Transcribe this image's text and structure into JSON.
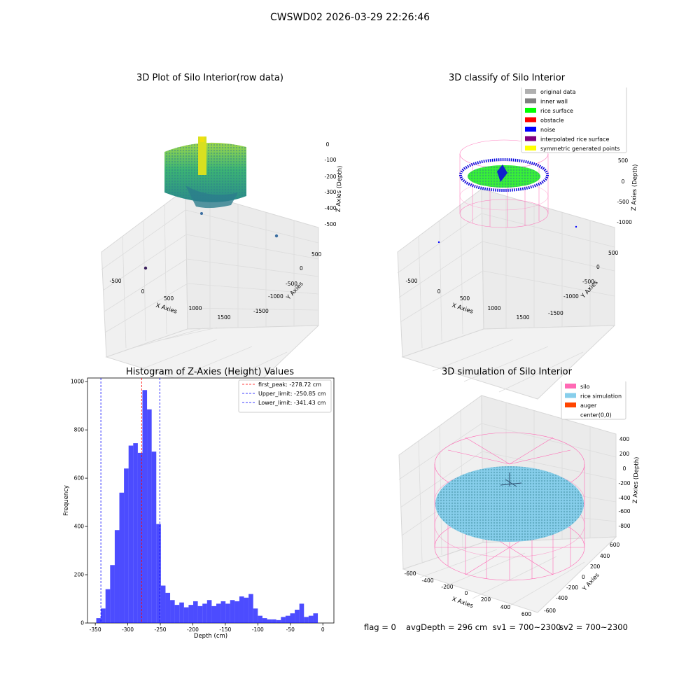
{
  "suptitle": "CWSWD02 2026-03-29 22:26:46",
  "panels": {
    "raw": {
      "title": "3D Plot of Silo Interior(row data)",
      "xlabel": "X Axies",
      "ylabel": "Y Axies",
      "zlabel": "Z Axies (Depth)",
      "xticks": [
        "-500",
        "0",
        "500",
        "1000",
        "1500"
      ],
      "yticks": [
        "500",
        "0",
        "-500",
        "-1000",
        "-1500"
      ],
      "zticks": [
        "0",
        "-100",
        "-200",
        "-300",
        "-400",
        "-500"
      ]
    },
    "classify": {
      "title": "3D classify of Silo Interior",
      "xlabel": "X Axies",
      "ylabel": "Y Axies",
      "zlabel": "Z Axies (Depth)",
      "xticks": [
        "-500",
        "0",
        "500",
        "1000",
        "1500"
      ],
      "yticks": [
        "500",
        "0",
        "-500",
        "-1000",
        "-1500"
      ],
      "zticks": [
        "500",
        "0",
        "-500",
        "-1000"
      ],
      "legend": [
        {
          "label": "original data",
          "color": "#b0b0b0"
        },
        {
          "label": "inner wall",
          "color": "#808080"
        },
        {
          "label": "rice surface",
          "color": "#00ff00"
        },
        {
          "label": "obstacle",
          "color": "#ff0000"
        },
        {
          "label": "noise",
          "color": "#0000ff"
        },
        {
          "label": "interpolated rice surface",
          "color": "#800080"
        },
        {
          "label": "symmetric generated points",
          "color": "#ffff00"
        }
      ]
    },
    "simulation": {
      "title": "3D simulation of Silo Interior",
      "xlabel": "X Axies",
      "ylabel": "Y Axies",
      "zlabel": "Z Axies (Depth)",
      "xticks": [
        "-600",
        "-400",
        "-200",
        "0",
        "200",
        "400",
        "600"
      ],
      "yticks": [
        "600",
        "400",
        "200",
        "0",
        "-200",
        "-400",
        "-600"
      ],
      "zticks": [
        "400",
        "200",
        "0",
        "-200",
        "-400",
        "-600",
        "-800"
      ],
      "legend": [
        {
          "label": "silo",
          "color": "#ff69b4"
        },
        {
          "label": "rice simulation",
          "color": "#87ceeb"
        },
        {
          "label": "auger",
          "color": "#ff4500"
        },
        {
          "label": "center(0,0)",
          "color": "#ffffff"
        }
      ]
    }
  },
  "chart_data": [
    {
      "type": "bar",
      "title": "Histogram of Z-Axies (Height) Values",
      "xlabel": "Depth (cm)",
      "ylabel": "Frequency",
      "xlim": [
        -362,
        17
      ],
      "ylim": [
        0,
        1015
      ],
      "xticks": [
        -350,
        -300,
        -250,
        -200,
        -150,
        -100,
        -50,
        0
      ],
      "yticks": [
        0,
        200,
        400,
        600,
        800,
        1000
      ],
      "bar_color": "#0000ff",
      "bin_width": 7.1,
      "bin_starts": [
        -348.5,
        -341.4,
        -334.3,
        -327.2,
        -320.1,
        -313.0,
        -305.9,
        -298.8,
        -291.7,
        -284.6,
        -277.5,
        -270.4,
        -263.3,
        -256.2,
        -249.1,
        -242.0,
        -234.9,
        -227.8,
        -220.7,
        -213.6,
        -206.5,
        -199.4,
        -192.3,
        -185.2,
        -178.1,
        -171.0,
        -163.9,
        -156.8,
        -149.7,
        -142.6,
        -135.5,
        -128.4,
        -121.3,
        -114.2,
        -107.1,
        -100.0,
        -92.9,
        -85.8,
        -78.7,
        -71.6,
        -64.5,
        -57.4,
        -50.3,
        -43.2,
        -36.1,
        -29.0,
        -21.9,
        -14.8,
        -7.7
      ],
      "values": [
        20,
        60,
        140,
        240,
        385,
        540,
        640,
        735,
        745,
        705,
        965,
        885,
        710,
        410,
        155,
        125,
        95,
        75,
        85,
        65,
        75,
        90,
        70,
        80,
        95,
        70,
        80,
        90,
        80,
        95,
        90,
        110,
        105,
        120,
        60,
        30,
        20,
        15,
        15,
        12,
        25,
        30,
        40,
        55,
        80,
        25,
        30,
        40,
        0
      ],
      "vlines": [
        {
          "label": "first_peak: -278.72 cm",
          "x": -278.72,
          "color": "#ff0000"
        },
        {
          "label": "Upper_limit: -250.85 cm",
          "x": -250.85,
          "color": "#0000ff"
        },
        {
          "label": "Lower_limit: -341.43 cm",
          "x": -341.43,
          "color": "#0000ff"
        }
      ],
      "legend_position": "top-right"
    }
  ],
  "footer": {
    "flag": "flag = 0",
    "avg": "avgDepth = 296 cm  sv1 = 700~2300",
    "sv2": "sv2 = 700~2300"
  }
}
